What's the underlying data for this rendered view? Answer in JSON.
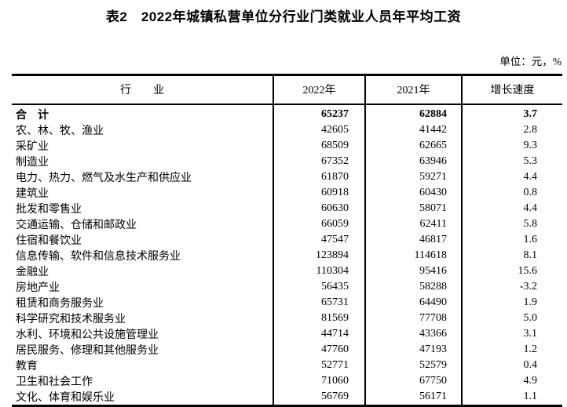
{
  "chart_data": {
    "type": "table",
    "title": "表2　2022年城镇私营单位分行业门类就业人员年平均工资",
    "unit_note": "单位：元，%",
    "columns": [
      "行　　业",
      "2022年",
      "2021年",
      "增长速度"
    ],
    "rows": [
      {
        "industry": "合　计",
        "y2022": "65237",
        "y2021": "62884",
        "growth": "3.7",
        "bold": true
      },
      {
        "industry": "农、林、牧、渔业",
        "y2022": "42605",
        "y2021": "41442",
        "growth": "2.8",
        "bold": false
      },
      {
        "industry": "采矿业",
        "y2022": "68509",
        "y2021": "62665",
        "growth": "9.3",
        "bold": false
      },
      {
        "industry": "制造业",
        "y2022": "67352",
        "y2021": "63946",
        "growth": "5.3",
        "bold": false
      },
      {
        "industry": "电力、热力、燃气及水生产和供应业",
        "y2022": "61870",
        "y2021": "59271",
        "growth": "4.4",
        "bold": false
      },
      {
        "industry": "建筑业",
        "y2022": "60918",
        "y2021": "60430",
        "growth": "0.8",
        "bold": false
      },
      {
        "industry": "批发和零售业",
        "y2022": "60630",
        "y2021": "58071",
        "growth": "4.4",
        "bold": false
      },
      {
        "industry": "交通运输、仓储和邮政业",
        "y2022": "66059",
        "y2021": "62411",
        "growth": "5.8",
        "bold": false
      },
      {
        "industry": "住宿和餐饮业",
        "y2022": "47547",
        "y2021": "46817",
        "growth": "1.6",
        "bold": false
      },
      {
        "industry": "信息传输、软件和信息技术服务业",
        "y2022": "123894",
        "y2021": "114618",
        "growth": "8.1",
        "bold": false
      },
      {
        "industry": "金融业",
        "y2022": "110304",
        "y2021": "95416",
        "growth": "15.6",
        "bold": false
      },
      {
        "industry": "房地产业",
        "y2022": "56435",
        "y2021": "58288",
        "growth": "-3.2",
        "bold": false
      },
      {
        "industry": "租赁和商务服务业",
        "y2022": "65731",
        "y2021": "64490",
        "growth": "1.9",
        "bold": false
      },
      {
        "industry": "科学研究和技术服务业",
        "y2022": "81569",
        "y2021": "77708",
        "growth": "5.0",
        "bold": false
      },
      {
        "industry": "水利、环境和公共设施管理业",
        "y2022": "44714",
        "y2021": "43366",
        "growth": "3.1",
        "bold": false
      },
      {
        "industry": "居民服务、修理和其他服务业",
        "y2022": "47760",
        "y2021": "47193",
        "growth": "1.2",
        "bold": false
      },
      {
        "industry": "教育",
        "y2022": "52771",
        "y2021": "52579",
        "growth": "0.4",
        "bold": false
      },
      {
        "industry": "卫生和社会工作",
        "y2022": "71060",
        "y2021": "67750",
        "growth": "4.9",
        "bold": false
      },
      {
        "industry": "文化、体育和娱乐业",
        "y2022": "56769",
        "y2021": "56171",
        "growth": "1.1",
        "bold": false
      }
    ]
  }
}
